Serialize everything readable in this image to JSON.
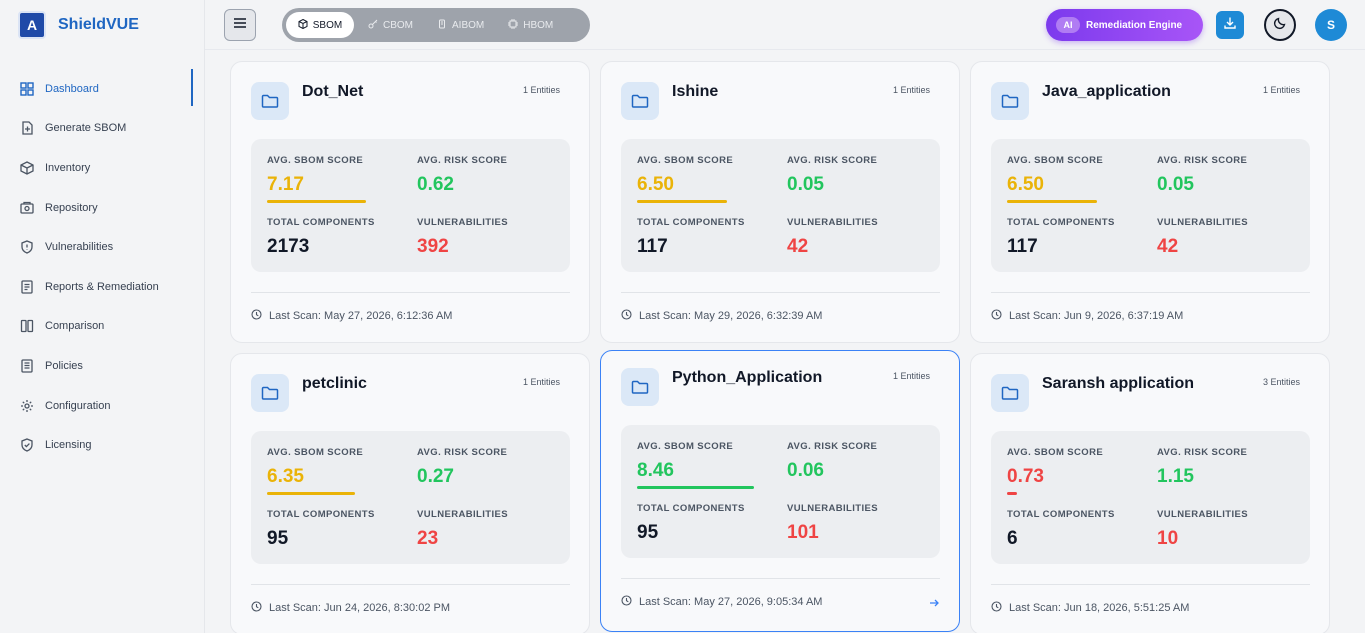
{
  "brand": {
    "name": "ShieldVUE",
    "logo_text": "A"
  },
  "sidebar": {
    "items": [
      {
        "label": "Dashboard",
        "icon": "dashboard-icon"
      },
      {
        "label": "Generate SBOM",
        "icon": "file-plus-icon"
      },
      {
        "label": "Inventory",
        "icon": "box-icon"
      },
      {
        "label": "Repository",
        "icon": "repository-icon"
      },
      {
        "label": "Vulnerabilities",
        "icon": "shield-alert-icon"
      },
      {
        "label": "Reports & Remediation",
        "icon": "report-icon"
      },
      {
        "label": "Comparison",
        "icon": "columns-icon"
      },
      {
        "label": "Policies",
        "icon": "policy-icon"
      },
      {
        "label": "Configuration",
        "icon": "gear-icon"
      },
      {
        "label": "Licensing",
        "icon": "shield-check-icon"
      }
    ]
  },
  "header": {
    "tabs": [
      {
        "label": "SBOM",
        "active": true
      },
      {
        "label": "CBOM",
        "active": false
      },
      {
        "label": "AIBOM",
        "active": false
      },
      {
        "label": "HBOM",
        "active": false
      }
    ],
    "ai_chip": "AI",
    "remediation_label": "Remediation Engine",
    "avatar_initial": "S"
  },
  "labels": {
    "sbom_score": "AVG. SBOM SCORE",
    "risk_score": "AVG. RISK SCORE",
    "components": "TOTAL COMPONENTS",
    "vulnerabilities": "VULNERABILITIES"
  },
  "colors": {
    "accent": "#1f66c2",
    "good": "#22c55e",
    "warn": "#eab308",
    "bad": "#ef4444",
    "ai": "#7c3aed"
  },
  "projects": [
    {
      "name": "Dot_Net",
      "entities": "1 Entities",
      "sbom_score": "7.17",
      "sbom_fraction": 0.717,
      "sbom_color": "yellow",
      "risk_score": "0.62",
      "components": "2173",
      "vulnerabilities": "392",
      "last_scan": "Last Scan: May 27, 2026, 6:12:36 AM"
    },
    {
      "name": "Ishine",
      "entities": "1 Entities",
      "sbom_score": "6.50",
      "sbom_fraction": 0.65,
      "sbom_color": "yellow",
      "risk_score": "0.05",
      "components": "117",
      "vulnerabilities": "42",
      "last_scan": "Last Scan: May 29, 2026, 6:32:39 AM"
    },
    {
      "name": "Java_application",
      "entities": "1 Entities",
      "sbom_score": "6.50",
      "sbom_fraction": 0.65,
      "sbom_color": "yellow",
      "risk_score": "0.05",
      "components": "117",
      "vulnerabilities": "42",
      "last_scan": "Last Scan: Jun 9, 2026, 6:37:19 AM"
    },
    {
      "name": "petclinic",
      "entities": "1 Entities",
      "sbom_score": "6.35",
      "sbom_fraction": 0.635,
      "sbom_color": "yellow",
      "risk_score": "0.27",
      "components": "95",
      "vulnerabilities": "23",
      "last_scan": "Last Scan: Jun 24, 2026, 8:30:02 PM"
    },
    {
      "name": "Python_Application",
      "entities": "1 Entities",
      "sbom_score": "8.46",
      "sbom_fraction": 0.846,
      "sbom_color": "green",
      "risk_score": "0.06",
      "components": "95",
      "vulnerabilities": "101",
      "last_scan": "Last Scan: May 27, 2026, 9:05:34 AM"
    },
    {
      "name": "Saransh application",
      "entities": "3 Entities",
      "sbom_score": "0.73",
      "sbom_fraction": 0.073,
      "sbom_color": "red",
      "risk_score": "1.15",
      "components": "6",
      "vulnerabilities": "10",
      "last_scan": "Last Scan: Jun 18, 2026, 5:51:25 AM"
    }
  ]
}
